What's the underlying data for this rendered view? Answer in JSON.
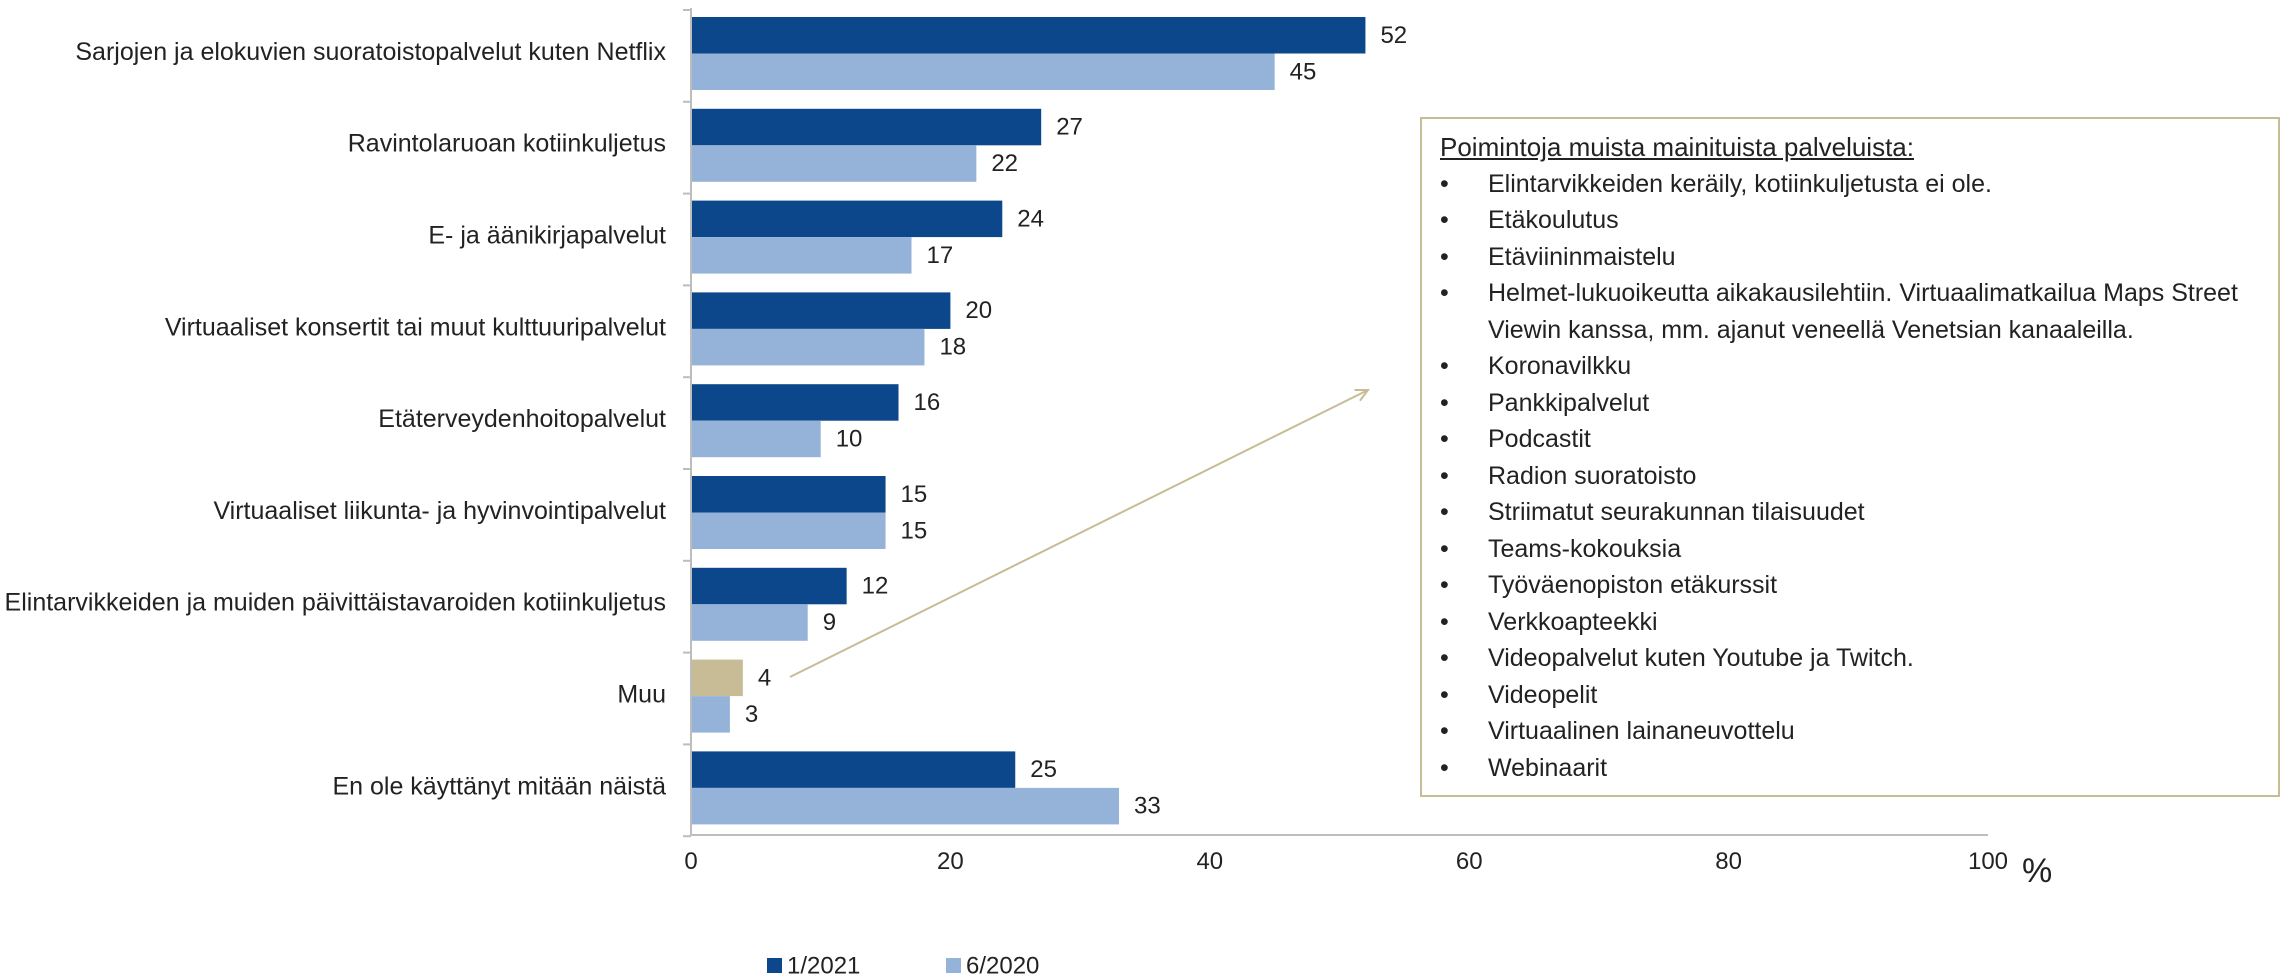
{
  "chart_data": {
    "type": "bar",
    "orientation": "horizontal",
    "categories": [
      "Sarjojen ja elokuvien suoratoistopalvelut kuten Netflix",
      "Ravintolaruoan kotiinkuljetus",
      "E- ja äänikirjapalvelut",
      "Virtuaaliset konsertit tai muut kulttuuripalvelut",
      "Etäterveydenhoitopalvelut",
      "Virtuaaliset liikunta- ja hyvinvointipalvelut",
      "Elintarvikkeiden ja muiden päivittäistavaroiden kotiinkuljetus",
      "Muu",
      "En ole käyttänyt mitään näistä"
    ],
    "series": [
      {
        "name": "1/2021",
        "color": "#0c478c",
        "values": [
          52,
          27,
          24,
          20,
          16,
          15,
          12,
          4,
          25
        ]
      },
      {
        "name": "6/2020",
        "color": "#95b3d9",
        "values": [
          45,
          22,
          17,
          18,
          10,
          15,
          9,
          3,
          33
        ]
      }
    ],
    "highlight": {
      "category_index": 7,
      "series_index": 0,
      "color": "#c8bc96"
    },
    "xlim": [
      0,
      100
    ],
    "xticks": [
      0,
      20,
      40,
      60,
      80,
      100
    ],
    "xunit": "%",
    "legend_position": "bottom",
    "grid": false
  },
  "annotation": {
    "title": "Poimintoja muista mainituista palveluista:",
    "items": [
      "Elintarvikkeiden keräily, kotiinkuljetusta ei ole.",
      "Etäkoulutus",
      "Etäviininmaistelu",
      "Helmet-lukuoikeutta aikakausilehtiin. Virtuaalimatkailua Maps Street Viewin kanssa, mm. ajanut veneellä Venetsian kanaaleilla.",
      "Koronavilkku",
      "Pankkipalvelut",
      "Podcastit",
      "Radion suoratoisto",
      "Striimatut seurakunnan tilaisuudet",
      "Teams-kokouksia",
      "Työväenopiston etäkurssit",
      "Verkkoapteekki",
      "Videopalvelut kuten Youtube ja Twitch.",
      "Videopelit",
      "Virtuaalinen lainaneuvottelu",
      "Webinaarit"
    ],
    "border_color": "#c8bc96"
  }
}
